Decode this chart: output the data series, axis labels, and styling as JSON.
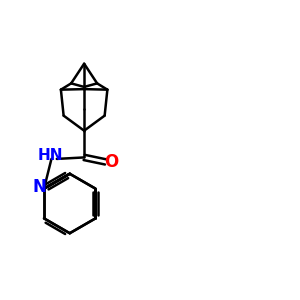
{
  "bg_color": "#ffffff",
  "bond_color": "#000000",
  "N_color": "#0000ff",
  "O_color": "#ff0000",
  "line_width": 1.8,
  "figsize": [
    3.0,
    3.0
  ],
  "dpi": 100,
  "xlim": [
    0,
    10
  ],
  "ylim": [
    0,
    10
  ]
}
